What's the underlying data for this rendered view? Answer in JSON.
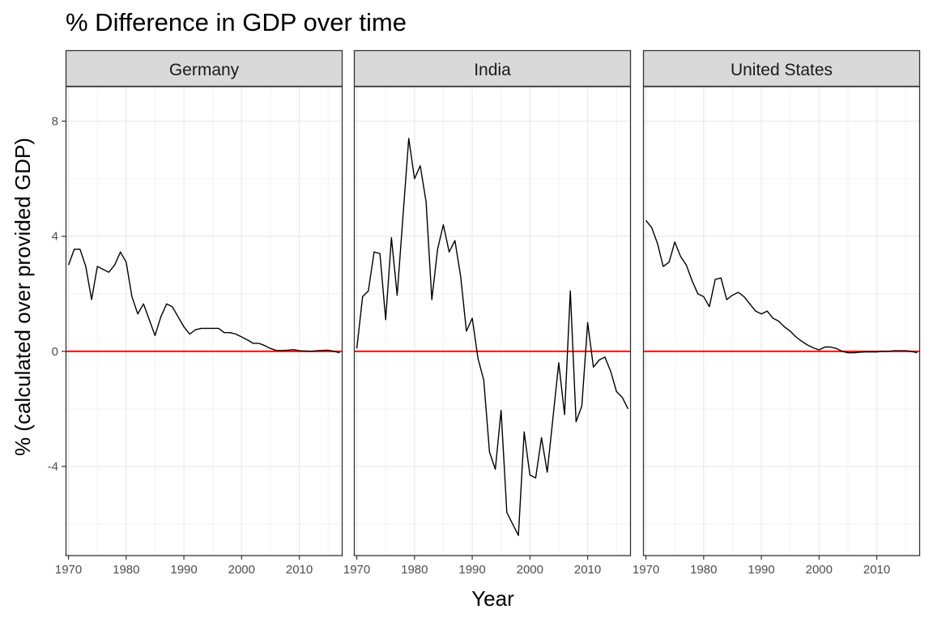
{
  "chart_data": {
    "type": "line",
    "title": "% Difference in GDP over time",
    "xlabel": "Year",
    "ylabel": "% (calculated over provided GDP)",
    "xlim": [
      1969.5,
      2017.5
    ],
    "ylim": [
      -7.1,
      9.2
    ],
    "x_ticks": [
      1970,
      1980,
      1990,
      2000,
      2010
    ],
    "y_ticks": [
      8,
      4,
      0,
      -4
    ],
    "y_tick_labels": [
      "8",
      "4",
      "0",
      "-4"
    ],
    "reference_line": {
      "y": 0,
      "color": "#ff0000"
    },
    "grid": true,
    "line_color": "#000000",
    "panels": [
      {
        "name": "Germany",
        "x": [
          1970,
          1971,
          1972,
          1973,
          1974,
          1975,
          1976,
          1977,
          1978,
          1979,
          1980,
          1981,
          1982,
          1983,
          1984,
          1985,
          1986,
          1987,
          1988,
          1989,
          1990,
          1991,
          1992,
          1993,
          1994,
          1995,
          1996,
          1997,
          1998,
          1999,
          2000,
          2001,
          2002,
          2003,
          2004,
          2005,
          2006,
          2007,
          2008,
          2009,
          2010,
          2011,
          2012,
          2013,
          2014,
          2015,
          2016,
          2017
        ],
        "y": [
          3.0,
          3.55,
          3.55,
          2.95,
          1.8,
          2.95,
          2.85,
          2.75,
          3.0,
          3.45,
          3.1,
          1.9,
          1.3,
          1.65,
          1.1,
          0.55,
          1.2,
          1.65,
          1.55,
          1.2,
          0.85,
          0.6,
          0.75,
          0.8,
          0.8,
          0.8,
          0.8,
          0.65,
          0.65,
          0.6,
          0.5,
          0.4,
          0.28,
          0.28,
          0.2,
          0.1,
          0.03,
          0.03,
          0.04,
          0.06,
          0.02,
          0.01,
          0.0,
          0.02,
          0.03,
          0.04,
          0.0,
          -0.05
        ]
      },
      {
        "name": "India",
        "x": [
          1970,
          1971,
          1972,
          1973,
          1974,
          1975,
          1976,
          1977,
          1978,
          1979,
          1980,
          1981,
          1982,
          1983,
          1984,
          1985,
          1986,
          1987,
          1988,
          1989,
          1990,
          1991,
          1992,
          1993,
          1994,
          1995,
          1996,
          1997,
          1998,
          1999,
          2000,
          2001,
          2002,
          2003,
          2004,
          2005,
          2006,
          2007,
          2008,
          2009,
          2010,
          2011,
          2012,
          2013,
          2014,
          2015,
          2016,
          2017
        ],
        "y": [
          0.1,
          1.9,
          2.1,
          3.45,
          3.4,
          1.1,
          3.95,
          1.95,
          4.7,
          7.4,
          6.0,
          6.45,
          5.2,
          1.8,
          3.55,
          4.4,
          3.45,
          3.85,
          2.6,
          0.7,
          1.15,
          -0.25,
          -1.0,
          -3.5,
          -4.1,
          -2.05,
          -5.6,
          -6.0,
          -6.4,
          -2.8,
          -4.3,
          -4.4,
          -3.0,
          -4.2,
          -2.3,
          -0.4,
          -2.2,
          2.1,
          -2.45,
          -1.9,
          1.0,
          -0.55,
          -0.3,
          -0.2,
          -0.7,
          -1.4,
          -1.6,
          -2.0
        ]
      },
      {
        "name": "United States",
        "x": [
          1970,
          1971,
          1972,
          1973,
          1974,
          1975,
          1976,
          1977,
          1978,
          1979,
          1980,
          1981,
          1982,
          1983,
          1984,
          1985,
          1986,
          1987,
          1988,
          1989,
          1990,
          1991,
          1992,
          1993,
          1994,
          1995,
          1996,
          1997,
          1998,
          1999,
          2000,
          2001,
          2002,
          2003,
          2004,
          2005,
          2006,
          2007,
          2008,
          2009,
          2010,
          2011,
          2012,
          2013,
          2014,
          2015,
          2016,
          2017
        ],
        "y": [
          4.55,
          4.3,
          3.75,
          2.95,
          3.1,
          3.8,
          3.3,
          3.0,
          2.45,
          2.0,
          1.9,
          1.55,
          2.5,
          2.55,
          1.8,
          1.95,
          2.05,
          1.9,
          1.65,
          1.4,
          1.3,
          1.4,
          1.15,
          1.05,
          0.85,
          0.7,
          0.5,
          0.35,
          0.22,
          0.12,
          0.05,
          0.15,
          0.15,
          0.1,
          0.0,
          -0.05,
          -0.05,
          -0.03,
          -0.02,
          -0.02,
          -0.02,
          0.0,
          0.0,
          0.02,
          0.02,
          0.02,
          0.0,
          -0.05
        ]
      }
    ]
  }
}
